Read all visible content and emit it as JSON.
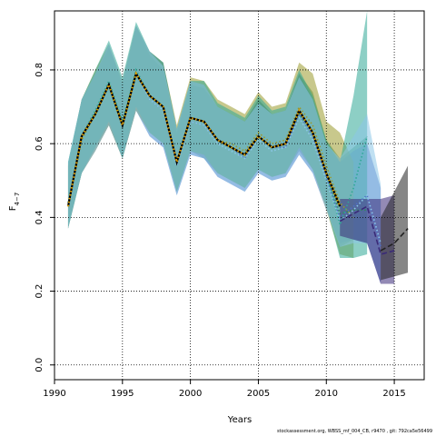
{
  "chart_data": {
    "type": "line",
    "xlabel": "Years",
    "ylabel_main": "F",
    "ylabel_sub": "4−7",
    "xlim": [
      1990,
      2017.2
    ],
    "ylim": [
      -0.04,
      0.96
    ],
    "xticks": [
      1990,
      1995,
      2000,
      2005,
      2010,
      2015
    ],
    "yticks": [
      0.0,
      0.2,
      0.4,
      0.6,
      0.8
    ],
    "ytick_labels": [
      "0.0",
      "0.2",
      "0.4",
      "0.6",
      "0.8"
    ],
    "grid": true,
    "series": [
      {
        "color": "#2f8a5a",
        "line_style": "dotted",
        "x": [
          1991,
          1992,
          1993,
          1994,
          1995,
          1996,
          1997,
          1998,
          1999,
          2000,
          2001,
          2002,
          2003,
          2004,
          2005,
          2006,
          2007,
          2008,
          2009,
          2010,
          2011,
          2012,
          2013
        ],
        "y": [
          0.44,
          0.62,
          0.69,
          0.76,
          0.66,
          0.79,
          0.73,
          0.7,
          0.55,
          0.67,
          0.66,
          0.61,
          0.59,
          0.57,
          0.62,
          0.59,
          0.6,
          0.68,
          0.63,
          0.52,
          0.41,
          0.42,
          0.42
        ],
        "upper": [
          0.55,
          0.72,
          0.79,
          0.86,
          0.77,
          0.92,
          0.84,
          0.8,
          0.63,
          0.76,
          0.75,
          0.7,
          0.68,
          0.66,
          0.72,
          0.68,
          0.69,
          0.79,
          0.74,
          0.61,
          0.56,
          0.59,
          0.62
        ],
        "lower": [
          0.37,
          0.52,
          0.59,
          0.65,
          0.56,
          0.69,
          0.63,
          0.6,
          0.47,
          0.58,
          0.56,
          0.52,
          0.5,
          0.48,
          0.53,
          0.51,
          0.52,
          0.58,
          0.53,
          0.43,
          0.32,
          0.34,
          0.33
        ]
      },
      {
        "color": "#4f6fc4",
        "line_style": "dotted",
        "x": [
          1991,
          1992,
          1993,
          1994,
          1995,
          1996,
          1997,
          1998,
          1999,
          2000,
          2001,
          2002,
          2003,
          2004,
          2005,
          2006,
          2007,
          2008,
          2009,
          2010,
          2011,
          2012,
          2013,
          2014
        ],
        "y": [
          0.44,
          0.62,
          0.68,
          0.76,
          0.65,
          0.79,
          0.72,
          0.69,
          0.54,
          0.66,
          0.65,
          0.61,
          0.59,
          0.56,
          0.62,
          0.59,
          0.59,
          0.68,
          0.62,
          0.51,
          0.4,
          0.43,
          0.46,
          0.32
        ],
        "upper": [
          0.54,
          0.72,
          0.79,
          0.87,
          0.76,
          0.92,
          0.85,
          0.82,
          0.64,
          0.77,
          0.76,
          0.7,
          0.68,
          0.66,
          0.72,
          0.68,
          0.69,
          0.79,
          0.72,
          0.6,
          0.55,
          0.58,
          0.6,
          0.48
        ],
        "lower": [
          0.37,
          0.52,
          0.58,
          0.65,
          0.56,
          0.69,
          0.62,
          0.59,
          0.46,
          0.57,
          0.56,
          0.51,
          0.49,
          0.47,
          0.52,
          0.5,
          0.51,
          0.57,
          0.52,
          0.42,
          0.33,
          0.34,
          0.33,
          0.22
        ]
      },
      {
        "color": "#9a9a2e",
        "line_style": "dotted",
        "x": [
          1991,
          1992,
          1993,
          1994,
          1995,
          1996,
          1997,
          1998,
          1999,
          2000,
          2001,
          2002,
          2003,
          2004,
          2005,
          2006,
          2007,
          2008,
          2009,
          2010,
          2011,
          2012
        ],
        "y": [
          0.43,
          0.61,
          0.68,
          0.76,
          0.65,
          0.79,
          0.73,
          0.7,
          0.55,
          0.67,
          0.66,
          0.61,
          0.6,
          0.58,
          0.63,
          0.6,
          0.61,
          0.7,
          0.65,
          0.54,
          0.44,
          0.4
        ],
        "upper": [
          0.54,
          0.72,
          0.8,
          0.87,
          0.77,
          0.92,
          0.85,
          0.82,
          0.65,
          0.78,
          0.77,
          0.72,
          0.7,
          0.68,
          0.74,
          0.7,
          0.71,
          0.82,
          0.79,
          0.66,
          0.63,
          0.55
        ],
        "lower": [
          0.37,
          0.52,
          0.58,
          0.65,
          0.56,
          0.69,
          0.63,
          0.6,
          0.47,
          0.58,
          0.57,
          0.52,
          0.5,
          0.48,
          0.53,
          0.51,
          0.52,
          0.59,
          0.53,
          0.42,
          0.3,
          0.29
        ]
      },
      {
        "color": "#2fa896",
        "line_style": "dotted",
        "x": [
          1991,
          1992,
          1993,
          1994,
          1995,
          1996,
          1997,
          1998,
          1999,
          2000,
          2001,
          2002,
          2003,
          2004,
          2005,
          2006,
          2007,
          2008,
          2009,
          2010,
          2011,
          2012,
          2013
        ],
        "y": [
          0.44,
          0.62,
          0.69,
          0.77,
          0.66,
          0.8,
          0.73,
          0.7,
          0.55,
          0.67,
          0.66,
          0.61,
          0.59,
          0.57,
          0.62,
          0.59,
          0.6,
          0.69,
          0.63,
          0.52,
          0.38,
          0.48,
          0.62
        ],
        "upper": [
          0.55,
          0.72,
          0.8,
          0.88,
          0.78,
          0.93,
          0.85,
          0.82,
          0.64,
          0.77,
          0.77,
          0.71,
          0.69,
          0.67,
          0.73,
          0.69,
          0.7,
          0.8,
          0.73,
          0.61,
          0.55,
          0.73,
          0.96
        ],
        "lower": [
          0.37,
          0.52,
          0.59,
          0.66,
          0.56,
          0.7,
          0.63,
          0.6,
          0.47,
          0.58,
          0.57,
          0.52,
          0.5,
          0.48,
          0.53,
          0.51,
          0.52,
          0.59,
          0.53,
          0.43,
          0.29,
          0.29,
          0.3
        ]
      },
      {
        "color": "#8cc6e8",
        "line_style": "dotted",
        "x": [
          1991,
          1992,
          1993,
          1994,
          1995,
          1996,
          1997,
          1998,
          1999,
          2000,
          2001,
          2002,
          2003,
          2004,
          2005,
          2006,
          2007,
          2008,
          2009,
          2010,
          2011,
          2012,
          2013,
          2014
        ],
        "y": [
          0.44,
          0.62,
          0.68,
          0.76,
          0.65,
          0.79,
          0.72,
          0.69,
          0.54,
          0.66,
          0.65,
          0.6,
          0.58,
          0.56,
          0.61,
          0.58,
          0.59,
          0.67,
          0.61,
          0.5,
          0.39,
          0.42,
          0.46,
          0.33
        ],
        "upper": [
          0.55,
          0.72,
          0.79,
          0.87,
          0.77,
          0.92,
          0.85,
          0.81,
          0.64,
          0.77,
          0.76,
          0.7,
          0.68,
          0.66,
          0.71,
          0.68,
          0.69,
          0.78,
          0.72,
          0.6,
          0.56,
          0.62,
          0.68,
          0.49
        ],
        "lower": [
          0.37,
          0.52,
          0.58,
          0.65,
          0.56,
          0.69,
          0.62,
          0.59,
          0.46,
          0.57,
          0.56,
          0.51,
          0.49,
          0.47,
          0.52,
          0.5,
          0.51,
          0.57,
          0.52,
          0.42,
          0.32,
          0.33,
          0.33,
          0.23
        ]
      },
      {
        "color": "#3a2a78",
        "line_style": "dashed",
        "x": [
          2011,
          2012,
          2013,
          2014,
          2015
        ],
        "y": [
          0.39,
          0.41,
          0.43,
          0.3,
          0.31
        ],
        "upper": [
          0.45,
          0.45,
          0.45,
          0.45,
          0.46
        ],
        "lower": [
          0.35,
          0.34,
          0.33,
          0.22,
          0.22
        ]
      },
      {
        "color": "#222222",
        "line_style": "dashed",
        "x": [
          2014,
          2015,
          2016
        ],
        "y": [
          0.31,
          0.33,
          0.37
        ],
        "upper": [
          0.4,
          0.47,
          0.54
        ],
        "lower": [
          0.23,
          0.24,
          0.25
        ]
      }
    ],
    "reference_line": {
      "color": "#e0a000",
      "style": "dotted",
      "x": [
        1991,
        1992,
        1993,
        1994,
        1995,
        1996,
        1997,
        1998,
        1999,
        2000,
        2001,
        2002,
        2003,
        2004,
        2005,
        2006,
        2007,
        2008,
        2009,
        2010,
        2011
      ],
      "y": [
        0.43,
        0.62,
        0.68,
        0.76,
        0.65,
        0.79,
        0.73,
        0.7,
        0.55,
        0.67,
        0.66,
        0.61,
        0.59,
        0.57,
        0.62,
        0.59,
        0.6,
        0.69,
        0.63,
        0.52,
        0.43
      ]
    }
  },
  "credit": "stockassessment.org, WBSS_mf_004_CB, r9470 , git: 792ca5e56499"
}
